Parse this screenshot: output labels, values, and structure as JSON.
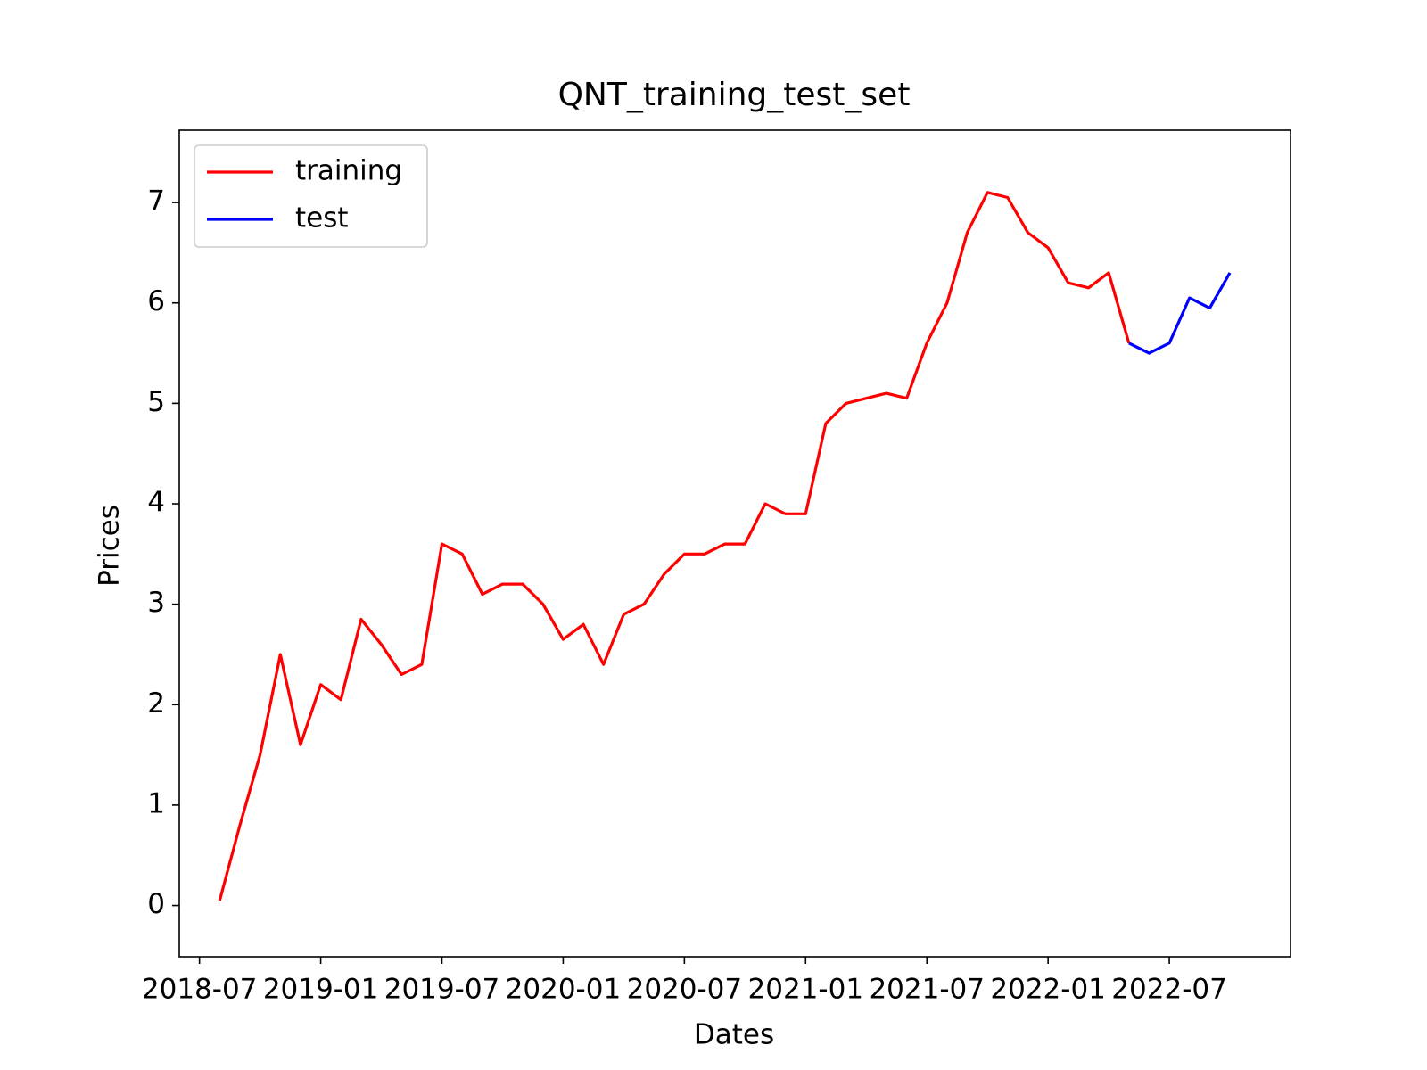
{
  "chart_data": {
    "type": "line",
    "title": "QNT_training_test_set",
    "x_label": "Dates",
    "y_label": "Prices",
    "x": [
      "2018-08",
      "2018-09",
      "2018-10",
      "2018-11",
      "2018-12",
      "2019-01",
      "2019-02",
      "2019-03",
      "2019-04",
      "2019-05",
      "2019-06",
      "2019-07",
      "2019-08",
      "2019-09",
      "2019-10",
      "2019-11",
      "2019-12",
      "2020-01",
      "2020-02",
      "2020-03",
      "2020-04",
      "2020-05",
      "2020-06",
      "2020-07",
      "2020-08",
      "2020-09",
      "2020-10",
      "2020-11",
      "2020-12",
      "2021-01",
      "2021-02",
      "2021-03",
      "2021-04",
      "2021-05",
      "2021-06",
      "2021-07",
      "2021-08",
      "2021-09",
      "2021-10",
      "2021-11",
      "2021-12",
      "2022-01",
      "2022-02",
      "2022-03",
      "2022-04",
      "2022-05",
      "2022-06",
      "2022-07",
      "2022-08",
      "2022-09",
      "2022-10"
    ],
    "series": [
      {
        "name": "training",
        "color": "#ff0000",
        "values": [
          0.05,
          0.8,
          1.5,
          2.5,
          1.6,
          2.2,
          2.05,
          2.85,
          2.6,
          2.3,
          2.4,
          3.6,
          3.5,
          3.1,
          3.2,
          3.2,
          3.0,
          2.65,
          2.8,
          2.4,
          2.9,
          3.0,
          3.3,
          3.5,
          3.5,
          3.6,
          3.6,
          4.0,
          3.9,
          3.9,
          4.8,
          5.0,
          5.05,
          5.1,
          5.05,
          5.6,
          6.0,
          6.7,
          7.1,
          7.05,
          6.7,
          6.55,
          6.2,
          6.15,
          6.3,
          5.6,
          null,
          null,
          null,
          null,
          null
        ]
      },
      {
        "name": "test",
        "color": "#0000ff",
        "values": [
          null,
          null,
          null,
          null,
          null,
          null,
          null,
          null,
          null,
          null,
          null,
          null,
          null,
          null,
          null,
          null,
          null,
          null,
          null,
          null,
          null,
          null,
          null,
          null,
          null,
          null,
          null,
          null,
          null,
          null,
          null,
          null,
          null,
          null,
          null,
          null,
          null,
          null,
          null,
          null,
          null,
          null,
          null,
          null,
          null,
          5.6,
          5.5,
          5.6,
          6.05,
          5.95,
          6.3
        ]
      }
    ],
    "xlim": [
      "2018-06",
      "2023-01"
    ],
    "xticks": [
      "2018-07",
      "2019-01",
      "2019-07",
      "2020-01",
      "2020-07",
      "2021-01",
      "2021-07",
      "2022-01",
      "2022-07"
    ],
    "ylim": [
      -0.51,
      7.72
    ],
    "yticks": [
      0,
      1,
      2,
      3,
      4,
      5,
      6,
      7
    ],
    "legend": "upper left"
  }
}
